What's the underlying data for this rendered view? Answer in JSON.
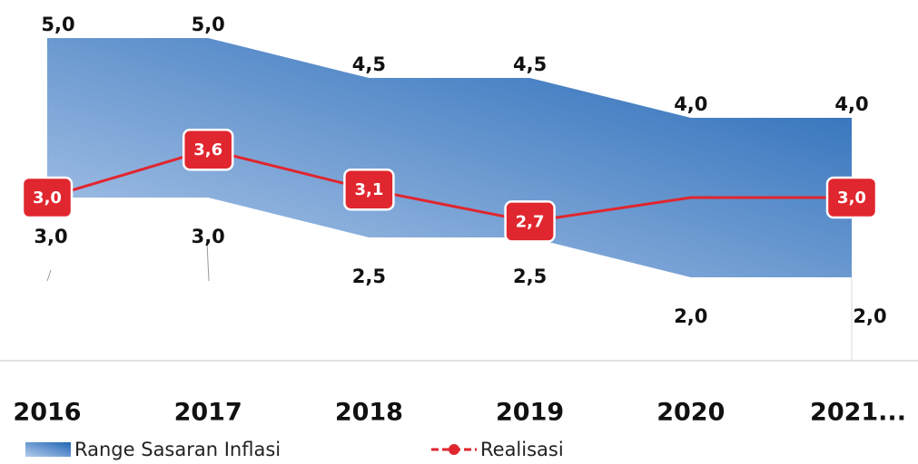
{
  "chart_data": {
    "type": "line",
    "categories": [
      "2016",
      "2017",
      "2018",
      "2019",
      "2020",
      "2021..."
    ],
    "ylim": [
      1,
      5.5
    ],
    "series": [
      {
        "name": "Range Sasaran Inflasi",
        "type": "range",
        "color": "#2166b5",
        "high": [
          5.0,
          5.0,
          4.5,
          4.5,
          4.0,
          4.0
        ],
        "high_labels": [
          "5,0",
          "5,0",
          "4,5",
          "4,5",
          "4,0",
          "4,0"
        ],
        "low": [
          3.0,
          3.0,
          2.5,
          2.5,
          2.0,
          2.0
        ],
        "low_labels": [
          "3,0",
          "3,0",
          "2,5",
          "2,5",
          "2,0",
          "2,0"
        ]
      },
      {
        "name": "Realisasi",
        "type": "line",
        "color": "#e0262e",
        "values": [
          3.0,
          3.6,
          3.1,
          2.7,
          3.0,
          3.0
        ],
        "value_labels": [
          "3,0",
          "3,6",
          "3,1",
          "2,7",
          null,
          "3,0"
        ]
      }
    ]
  }
}
